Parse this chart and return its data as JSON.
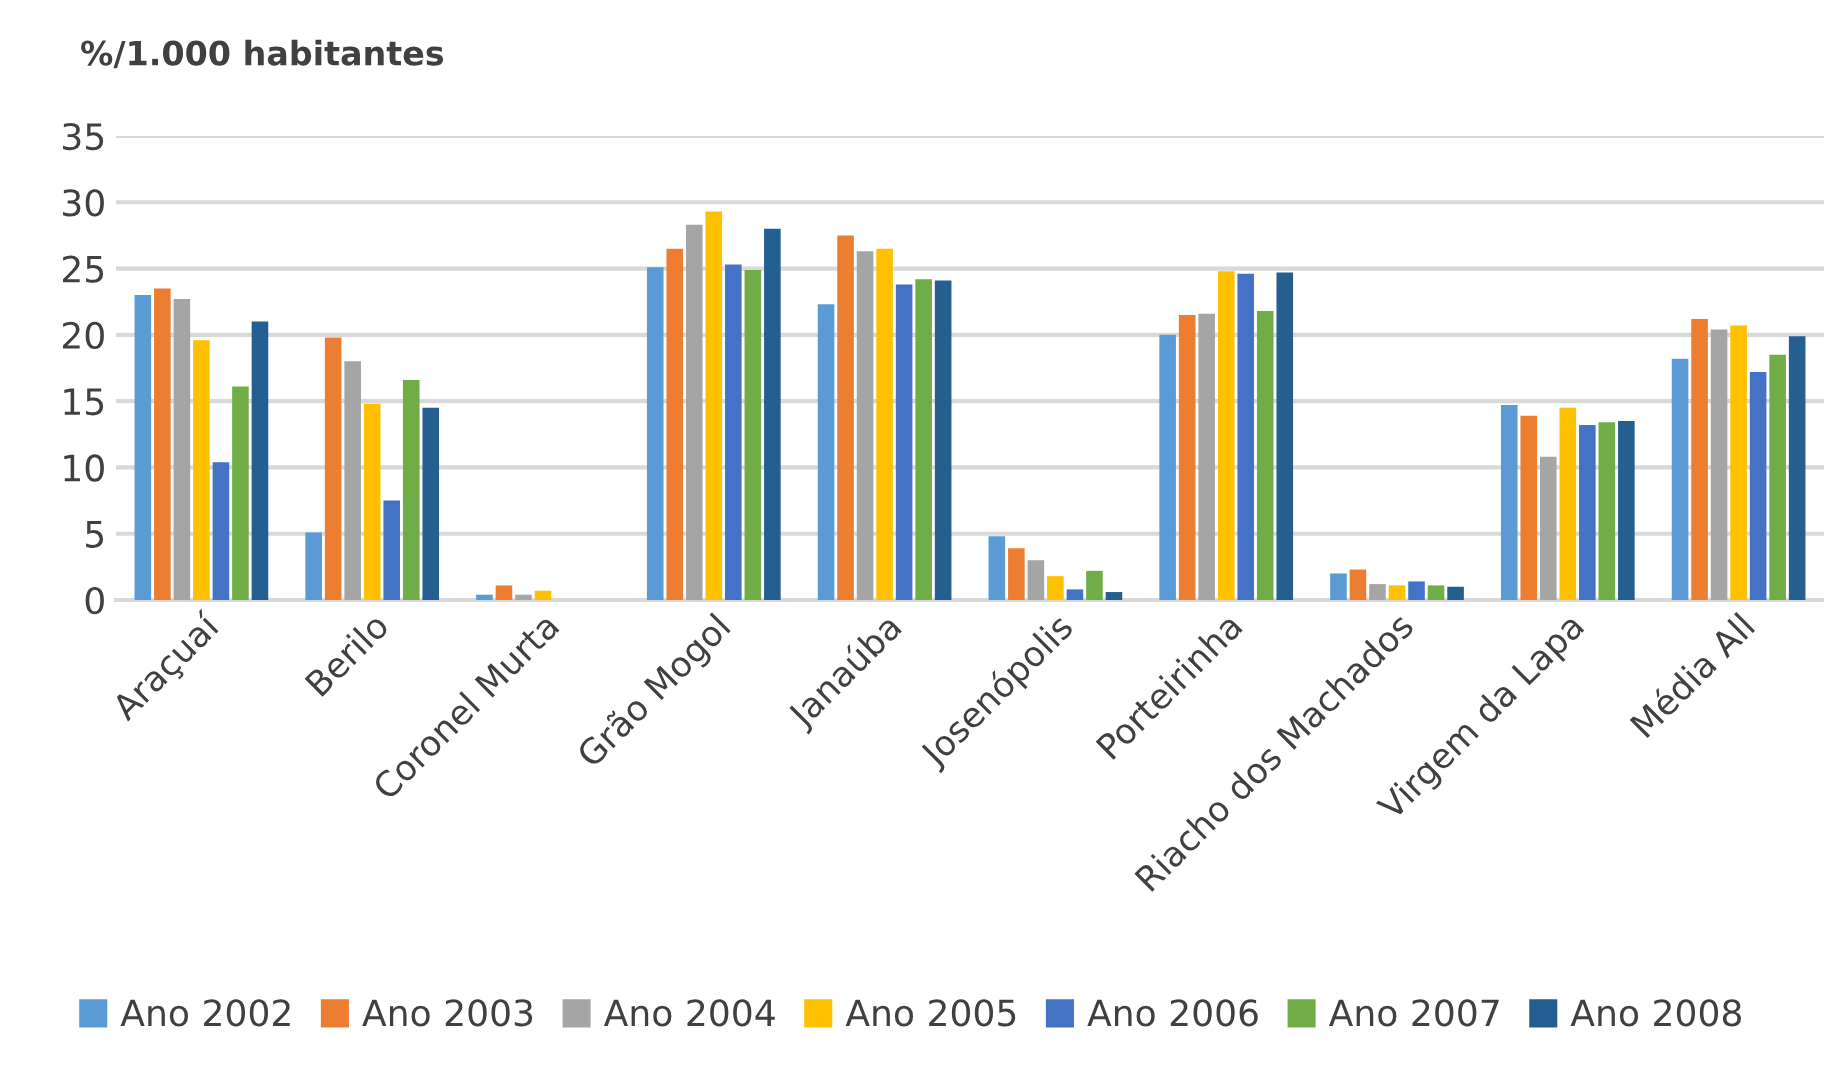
{
  "chart_data": {
    "type": "bar",
    "title": "%/1.000 habitantes",
    "categories": [
      "Araçuaí",
      "Berilo",
      "Coronel Murta",
      "Grão Mogol",
      "Janaúba",
      "Josenópolis",
      "Porteirinha",
      "Riacho dos Machados",
      "Virgem da Lapa",
      "Média All"
    ],
    "series": [
      {
        "name": "Ano 2002",
        "color": "#5b9bd5",
        "values": [
          23.0,
          5.1,
          0.4,
          25.1,
          22.3,
          4.8,
          20.0,
          2.0,
          14.7,
          18.2
        ]
      },
      {
        "name": "Ano 2003",
        "color": "#ed7d31",
        "values": [
          23.5,
          19.8,
          1.1,
          26.5,
          27.5,
          3.9,
          21.5,
          2.3,
          13.9,
          21.2
        ]
      },
      {
        "name": "Ano 2004",
        "color": "#a5a5a5",
        "values": [
          22.7,
          18.0,
          0.4,
          28.3,
          26.3,
          3.0,
          21.6,
          1.2,
          10.8,
          20.4
        ]
      },
      {
        "name": "Ano 2005",
        "color": "#ffc000",
        "values": [
          19.6,
          14.8,
          0.7,
          29.3,
          26.5,
          1.8,
          24.8,
          1.1,
          14.5,
          20.7
        ]
      },
      {
        "name": "Ano 2006",
        "color": "#4472c4",
        "values": [
          10.4,
          7.5,
          0,
          25.3,
          23.8,
          0.8,
          24.6,
          1.4,
          13.2,
          17.2
        ]
      },
      {
        "name": "Ano 2007",
        "color": "#70ad47",
        "values": [
          16.1,
          16.6,
          0,
          24.9,
          24.2,
          2.2,
          21.8,
          1.1,
          13.4,
          18.5
        ]
      },
      {
        "name": "Ano 2008",
        "color": "#255e91",
        "values": [
          21.0,
          14.5,
          0,
          28.0,
          24.1,
          0.6,
          24.7,
          1.0,
          13.5,
          19.9
        ]
      }
    ],
    "ylim": [
      0,
      35
    ],
    "yticks": [
      0,
      5,
      10,
      15,
      20,
      25,
      30,
      35
    ],
    "grid": "y",
    "legend": "bottom"
  }
}
